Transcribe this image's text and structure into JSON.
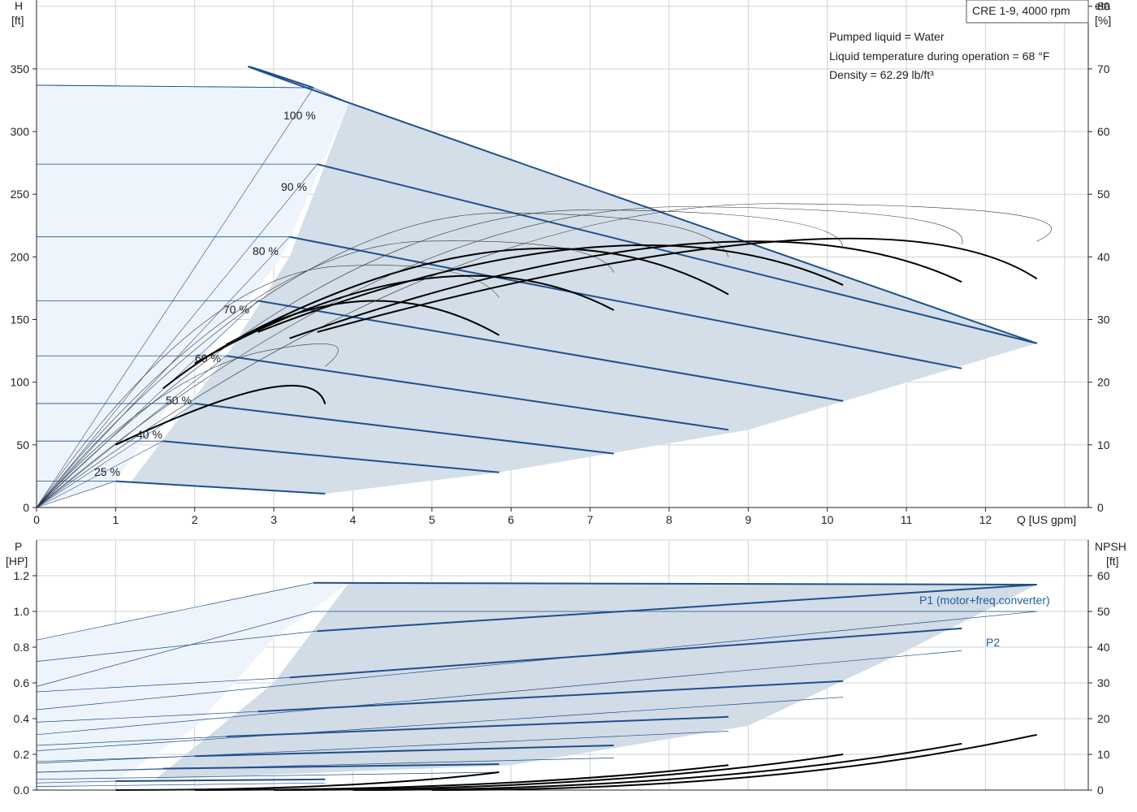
{
  "chart_data": [
    {
      "type": "line",
      "title": "CRE 1-9, 4000 rpm",
      "info_lines": [
        "Pumped liquid = Water",
        "Liquid temperature during operation = 68 °F",
        "Density = 62.29 lb/ft³"
      ],
      "xlabel": "Q [US gpm]",
      "ylabel_left_name": "H",
      "ylabel_left_unit": "[ft]",
      "ylabel_right_name": "eta",
      "ylabel_right_unit": "[%]",
      "xlim": [
        0,
        13.3
      ],
      "ylim": [
        0,
        405
      ],
      "y2lim": [
        0,
        81
      ],
      "x_ticks": [
        "0",
        "1",
        "2",
        "3",
        "4",
        "5",
        "6",
        "7",
        "8",
        "9",
        "10",
        "11",
        "12"
      ],
      "y_ticks": [
        "0",
        "50",
        "100",
        "150",
        "200",
        "250",
        "300",
        "350"
      ],
      "y2_ticks": [
        "0",
        "10",
        "20",
        "30",
        "40",
        "50",
        "60",
        "70",
        "80"
      ],
      "grid": true,
      "colors": {
        "head": "#1f4f8c",
        "eta": "#000000",
        "region": "#d1dce7",
        "region_light": "#eef4fb"
      },
      "speed_labels": [
        "25 %",
        "40 %",
        "50 %",
        "60 %",
        "70 %",
        "80 %",
        "90 %",
        "100 %"
      ],
      "head_series": [
        {
          "name": "25 %",
          "x": [
            0,
            1.0,
            3.65
          ],
          "y": [
            21,
            21,
            11
          ]
        },
        {
          "name": "40 %",
          "x": [
            0,
            1.6,
            5.85
          ],
          "y": [
            53,
            53,
            28
          ]
        },
        {
          "name": "50 %",
          "x": [
            0,
            2.0,
            7.3
          ],
          "y": [
            83,
            83,
            43
          ]
        },
        {
          "name": "60 %",
          "x": [
            0,
            2.4,
            8.75
          ],
          "y": [
            121,
            121,
            62
          ]
        },
        {
          "name": "70 %",
          "x": [
            0,
            2.8,
            10.2
          ],
          "y": [
            165,
            165,
            85
          ]
        },
        {
          "name": "80 %",
          "x": [
            0,
            3.2,
            11.7
          ],
          "y": [
            216,
            216,
            111
          ]
        },
        {
          "name": "90 %",
          "x": [
            0,
            3.55,
            12.65
          ],
          "y": [
            274,
            274,
            131
          ]
        },
        {
          "name": "100 %",
          "x": [
            0,
            3.5,
            3.95,
            12.65
          ],
          "y": [
            337,
            335,
            323,
            131
          ]
        }
      ],
      "eta_series": [
        {
          "name": "25 %",
          "x": [
            1.0,
            2.9,
            3.65
          ],
          "eta": [
            10,
            19,
            16.5
          ]
        },
        {
          "name": "40 %",
          "x": [
            1.6,
            3.8,
            5.85
          ],
          "eta": [
            19,
            32.5,
            27.5
          ]
        },
        {
          "name": "50 %",
          "x": [
            2.0,
            4.9,
            7.3
          ],
          "eta": [
            23,
            36.5,
            31.5
          ]
        },
        {
          "name": "60 %",
          "x": [
            2.4,
            5.9,
            8.75
          ],
          "eta": [
            26,
            41,
            34
          ]
        },
        {
          "name": "70 %",
          "x": [
            2.8,
            7.0,
            10.2
          ],
          "eta": [
            28,
            41.5,
            35.5
          ]
        },
        {
          "name": "80 %",
          "x": [
            3.2,
            8.2,
            11.7
          ],
          "eta": [
            27,
            42,
            36
          ]
        },
        {
          "name": "90 %",
          "x": [
            3.55,
            9.4,
            12.65
          ],
          "eta": [
            28,
            42.5,
            36.5
          ]
        }
      ]
    },
    {
      "type": "line",
      "xlabel": "",
      "ylabel_left_name": "P",
      "ylabel_left_unit": "[HP]",
      "ylabel_right_name": "NPSH",
      "ylabel_right_unit": "[ft]",
      "xlim": [
        0,
        13.3
      ],
      "ylim": [
        0,
        1.4
      ],
      "y2lim": [
        0,
        70
      ],
      "y_ticks": [
        "0.0",
        "0.2",
        "0.4",
        "0.6",
        "0.8",
        "1.0",
        "1.2"
      ],
      "y2_ticks": [
        "0",
        "10",
        "20",
        "30",
        "40",
        "50",
        "60"
      ],
      "grid": true,
      "series_labels": [
        "P1 (motor+freq.converter)",
        "P2"
      ],
      "p1_series": [
        {
          "name": "25 %",
          "x": [
            0,
            1.0,
            3.65
          ],
          "y": [
            0.04,
            0.05,
            0.06
          ]
        },
        {
          "name": "40 %",
          "x": [
            0,
            1.6,
            5.85
          ],
          "y": [
            0.1,
            0.12,
            0.145
          ]
        },
        {
          "name": "50 %",
          "x": [
            0,
            2.0,
            7.3
          ],
          "y": [
            0.16,
            0.19,
            0.25
          ]
        },
        {
          "name": "60 %",
          "x": [
            0,
            2.4,
            8.75
          ],
          "y": [
            0.25,
            0.3,
            0.41
          ]
        },
        {
          "name": "70 %",
          "x": [
            0,
            2.8,
            10.2
          ],
          "y": [
            0.38,
            0.44,
            0.61
          ]
        },
        {
          "name": "80 %",
          "x": [
            0,
            3.2,
            11.7
          ],
          "y": [
            0.55,
            0.63,
            0.905
          ]
        },
        {
          "name": "90 %",
          "x": [
            0,
            3.55,
            12.65
          ],
          "y": [
            0.72,
            0.89,
            1.15
          ]
        },
        {
          "name": "100 %",
          "x": [
            0,
            3.5,
            12.65
          ],
          "y": [
            0.84,
            1.16,
            1.15
          ]
        }
      ],
      "p2_series": [
        {
          "name": "25 %",
          "x": [
            0,
            3.65
          ],
          "y": [
            0.02,
            0.04
          ]
        },
        {
          "name": "40 %",
          "x": [
            0,
            5.85
          ],
          "y": [
            0.06,
            0.1
          ]
        },
        {
          "name": "50 %",
          "x": [
            0,
            7.3
          ],
          "y": [
            0.1,
            0.18
          ]
        },
        {
          "name": "60 %",
          "x": [
            0,
            8.75
          ],
          "y": [
            0.15,
            0.33
          ]
        },
        {
          "name": "70 %",
          "x": [
            0,
            10.2
          ],
          "y": [
            0.22,
            0.52
          ]
        },
        {
          "name": "80 %",
          "x": [
            0,
            11.7
          ],
          "y": [
            0.31,
            0.78
          ]
        },
        {
          "name": "90 %",
          "x": [
            0,
            12.65
          ],
          "y": [
            0.45,
            1.0
          ]
        },
        {
          "name": "100 %",
          "x": [
            0,
            3.5,
            12.65
          ],
          "y": [
            0.58,
            1.0,
            1.0
          ]
        }
      ],
      "npsh_series": [
        {
          "name": "40 %",
          "x": [
            1.0,
            5.85
          ],
          "y": [
            0,
            5
          ]
        },
        {
          "name": "60 %",
          "x": [
            2.0,
            8.75
          ],
          "y": [
            0,
            7
          ]
        },
        {
          "name": "80 %",
          "x": [
            3.0,
            10.2
          ],
          "y": [
            0,
            10
          ]
        },
        {
          "name": "90 %",
          "x": [
            4.0,
            11.7
          ],
          "y": [
            0,
            13
          ]
        },
        {
          "name": "100 %",
          "x": [
            5.0,
            12.65
          ],
          "y": [
            0,
            15.5
          ]
        }
      ]
    }
  ]
}
